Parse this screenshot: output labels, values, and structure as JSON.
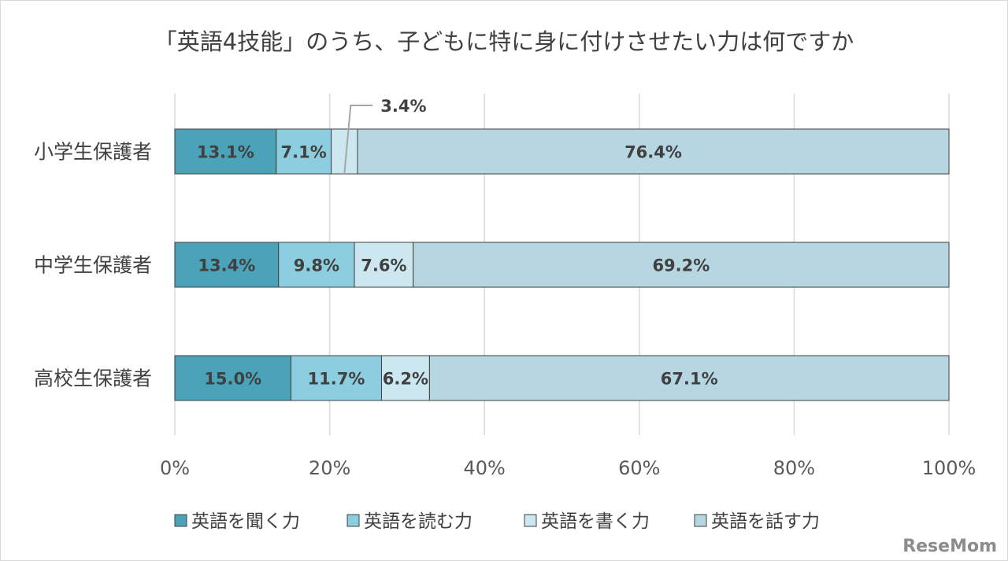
{
  "logo": {
    "text": "ReseMom"
  },
  "chart_data": {
    "type": "bar",
    "orientation": "horizontal",
    "stacked": "percent",
    "title": "「英語4技能」のうち、子どもに特に身に付けさせたい力は何ですか",
    "xlabel": "",
    "ylabel": "",
    "xlim": [
      0,
      100
    ],
    "x_ticks": [
      "0%",
      "20%",
      "40%",
      "60%",
      "80%",
      "100%"
    ],
    "grid": "vertical",
    "legend_position": "bottom",
    "categories": [
      "小学生保護者",
      "中学生保護者",
      "高校生保護者"
    ],
    "series": [
      {
        "name": "英語を聞く力",
        "color": "#4aa3b9",
        "values": [
          13.1,
          13.4,
          15.0
        ],
        "labels": [
          "13.1%",
          "13.4%",
          "15.0%"
        ]
      },
      {
        "name": "英語を読む力",
        "color": "#8ccde0",
        "values": [
          7.1,
          9.8,
          11.7
        ],
        "labels": [
          "7.1%",
          "9.8%",
          "11.7%"
        ]
      },
      {
        "name": "英語を書く力",
        "color": "#cde7f0",
        "values": [
          3.4,
          7.6,
          6.2
        ],
        "labels": [
          "3.4%",
          "7.6%",
          "6.2%"
        ]
      },
      {
        "name": "英語を話す力",
        "color": "#b6d7e2",
        "values": [
          76.4,
          69.2,
          67.1
        ],
        "labels": [
          "76.4%",
          "69.2%",
          "67.1%"
        ]
      }
    ]
  }
}
